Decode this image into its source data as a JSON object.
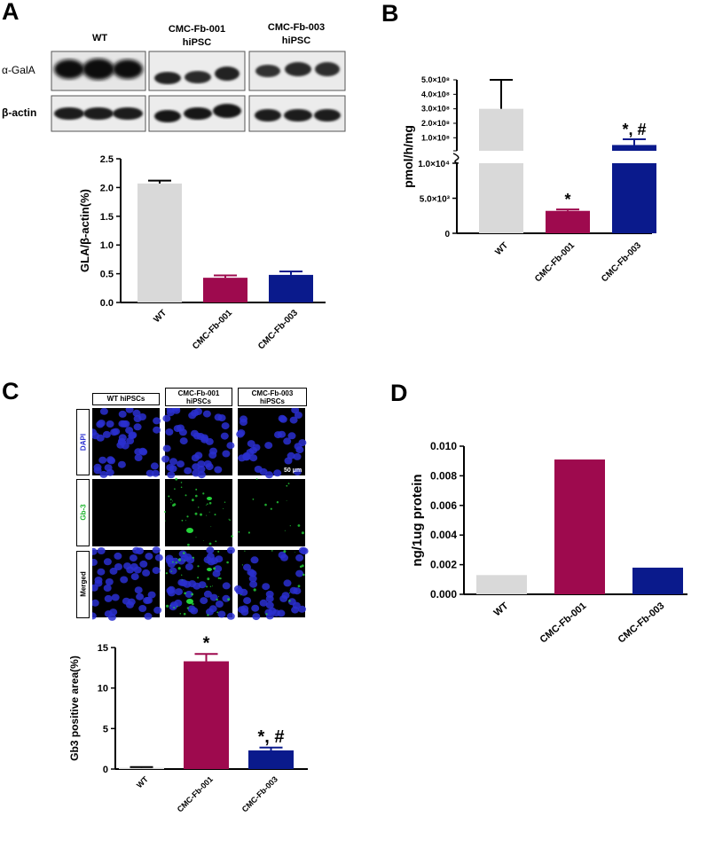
{
  "panels": {
    "A": "A",
    "B": "B",
    "C": "C",
    "D": "D"
  },
  "blot": {
    "col_wt": "WT",
    "col_fb001_line1": "CMC-Fb-001",
    "col_fb001_line2": "hiPSC",
    "col_fb003_line1": "CMC-Fb-003",
    "col_fb003_line2": "hiPSC",
    "row_gala": "α-GalA",
    "row_actin": "β-actin"
  },
  "micro": {
    "col_wt": "WT hiPSCs",
    "col_fb001_line1": "CMC-Fb-001",
    "col_fb001_line2": "hiPSCs",
    "col_fb003_line1": "CMC-Fb-003",
    "col_fb003_line2": "hiPSCs",
    "row_dapi": "DAPI",
    "row_gb3": "Gb-3",
    "row_merged": "Merged",
    "scale_bar": "50 μm",
    "colors": {
      "dapi": "#2a2fd0",
      "gb3": "#25d43a"
    }
  },
  "chart_data": [
    {
      "id": "A",
      "type": "bar",
      "categories": [
        "WT",
        "CMC-Fb-001",
        "CMC-Fb-003"
      ],
      "values": [
        2.07,
        0.43,
        0.48
      ],
      "errors": [
        0.05,
        0.04,
        0.06
      ],
      "ylabel": "GLA/β-actin(%)",
      "ylim": [
        0,
        2.5
      ],
      "yticks": [
        "0.0",
        "0.5",
        "1.0",
        "1.5",
        "2.0",
        "2.5"
      ],
      "colors": [
        "#d9d9d9",
        "#9e0a4e",
        "#0a1a8c"
      ],
      "annotations": [
        "",
        "",
        ""
      ]
    },
    {
      "id": "B",
      "type": "bar",
      "broken_axis": true,
      "categories": [
        "WT",
        "CMC-Fb-001",
        "CMC-Fb-003"
      ],
      "values": [
        300000000,
        3200,
        50000000
      ],
      "errors_upper": [
        500000000,
        3400,
        90000000
      ],
      "ylabel": "pmol/h/mg",
      "lower_segment": {
        "ylim": [
          0,
          10000
        ],
        "ticks": [
          0,
          5000,
          10000
        ],
        "tick_labels": [
          "0",
          "5.0×10³",
          "1.0×10⁴"
        ]
      },
      "upper_segment": {
        "ticks": [
          10000000,
          100000000,
          200000000,
          300000000,
          400000000,
          500000000
        ],
        "tick_labels": [
          "",
          "1.0×10⁸",
          "2.0×10⁸",
          "3.0×10⁸",
          "4.0×10⁸",
          "5.0×10⁸"
        ]
      },
      "colors": [
        "#d9d9d9",
        "#9e0a4e",
        "#0a1a8c"
      ],
      "annotations": [
        "",
        "*",
        "*, #"
      ]
    },
    {
      "id": "C",
      "type": "bar",
      "categories": [
        "WT",
        "CMC-Fb-001",
        "CMC-Fb-003"
      ],
      "values": [
        0.15,
        13.3,
        2.3
      ],
      "errors": [
        0.1,
        0.9,
        0.35
      ],
      "ylabel": "Gb3 positive area(%)",
      "ylim": [
        0,
        15
      ],
      "yticks": [
        "0",
        "5",
        "10",
        "15"
      ],
      "colors": [
        "#d9d9d9",
        "#9e0a4e",
        "#0a1a8c"
      ],
      "annotations": [
        "",
        "*",
        "*, #"
      ]
    },
    {
      "id": "D",
      "type": "bar",
      "categories": [
        "WT",
        "CMC-Fb-001",
        "CMC-Fb-003"
      ],
      "values": [
        0.0013,
        0.0091,
        0.0018
      ],
      "ylabel": "ng/1ug protein",
      "ylim": [
        0,
        0.01
      ],
      "yticks": [
        "0.000",
        "0.002",
        "0.004",
        "0.006",
        "0.008",
        "0.010"
      ],
      "colors": [
        "#d9d9d9",
        "#9e0a4e",
        "#0a1a8c"
      ],
      "annotations": [
        "",
        "",
        ""
      ]
    }
  ]
}
